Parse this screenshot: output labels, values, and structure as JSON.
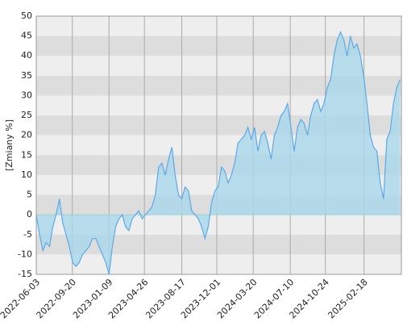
{
  "chart_data": {
    "type": "area",
    "y_label": "[Zmiany %]",
    "x": [
      "2022-06-03",
      "2022-06-13",
      "2022-06-23",
      "2022-07-03",
      "2022-07-13",
      "2022-07-23",
      "2022-08-02",
      "2022-08-12",
      "2022-08-22",
      "2022-09-01",
      "2022-09-11",
      "2022-09-21",
      "2022-10-01",
      "2022-10-11",
      "2022-10-21",
      "2022-10-31",
      "2022-11-10",
      "2022-11-20",
      "2022-11-30",
      "2022-12-10",
      "2022-12-20",
      "2022-12-30",
      "2023-01-09",
      "2023-01-19",
      "2023-01-29",
      "2023-02-08",
      "2023-02-18",
      "2023-02-28",
      "2023-03-10",
      "2023-03-20",
      "2023-03-30",
      "2023-04-09",
      "2023-04-19",
      "2023-04-29",
      "2023-05-09",
      "2023-05-19",
      "2023-05-29",
      "2023-06-08",
      "2023-06-18",
      "2023-06-28",
      "2023-07-08",
      "2023-07-18",
      "2023-07-28",
      "2023-08-07",
      "2023-08-17",
      "2023-08-27",
      "2023-09-06",
      "2023-09-16",
      "2023-09-26",
      "2023-10-06",
      "2023-10-16",
      "2023-10-26",
      "2023-11-05",
      "2023-11-15",
      "2023-11-25",
      "2023-12-05",
      "2023-12-15",
      "2023-12-25",
      "2024-01-04",
      "2024-01-14",
      "2024-01-24",
      "2024-02-03",
      "2024-02-13",
      "2024-02-23",
      "2024-03-04",
      "2024-03-14",
      "2024-03-24",
      "2024-04-03",
      "2024-04-13",
      "2024-04-23",
      "2024-05-03",
      "2024-05-13",
      "2024-05-23",
      "2024-06-02",
      "2024-06-12",
      "2024-06-22",
      "2024-07-02",
      "2024-07-12",
      "2024-07-22",
      "2024-08-01",
      "2024-08-11",
      "2024-08-21",
      "2024-08-31",
      "2024-09-10",
      "2024-09-20",
      "2024-09-30",
      "2024-10-10",
      "2024-10-20",
      "2024-10-30",
      "2024-11-09",
      "2024-11-19",
      "2024-11-29",
      "2024-12-09",
      "2024-12-19",
      "2024-12-29",
      "2025-01-08",
      "2025-01-18",
      "2025-01-28",
      "2025-02-07",
      "2025-02-17",
      "2025-02-27",
      "2025-03-09",
      "2025-03-19",
      "2025-03-29",
      "2025-04-08",
      "2025-04-18",
      "2025-04-28",
      "2025-05-08",
      "2025-05-18",
      "2025-05-28",
      "2025-06-07"
    ],
    "values": [
      0,
      -5,
      -9,
      -7,
      -8,
      -3,
      0,
      4,
      -2,
      -5,
      -8,
      -12,
      -13,
      -12,
      -10,
      -9,
      -8,
      -6,
      -6,
      -8,
      -10,
      -12,
      -15,
      -8,
      -3,
      -1,
      0,
      -3,
      -4,
      -1,
      0,
      1,
      -1,
      0,
      1,
      2,
      5,
      12,
      13,
      10,
      14,
      17,
      10,
      5,
      4,
      7,
      6,
      1,
      0,
      -1,
      -3,
      -6,
      -3,
      3,
      6,
      7,
      12,
      11,
      8,
      10,
      13,
      18,
      19,
      20,
      22,
      19,
      22,
      16,
      20,
      21,
      18,
      14,
      20,
      22,
      25,
      26,
      28,
      22,
      16,
      22,
      24,
      23,
      20,
      25,
      28,
      29,
      26,
      28,
      32,
      34,
      40,
      44,
      46,
      44,
      40,
      45,
      42,
      43,
      40,
      35,
      28,
      20,
      17,
      16,
      8,
      4,
      19,
      21,
      28,
      32,
      34
    ],
    "color": "#5aa9e6",
    "area_color": "#a9d8ec",
    "band_colors": [
      "#eeeeee",
      "#dddddd"
    ],
    "xlim": [
      "2022-06-03",
      "2025-06-11"
    ],
    "xticks": [
      "2022-06-03",
      "2022-09-20",
      "2023-01-09",
      "2023-04-26",
      "2023-08-17",
      "2023-12-01",
      "2024-03-20",
      "2024-07-10",
      "2024-10-24",
      "2025-02-18"
    ],
    "ylim": [
      -15,
      50
    ],
    "yticks": [
      -15,
      -10,
      -5,
      0,
      5,
      10,
      15,
      20,
      25,
      30,
      35,
      40,
      45,
      50
    ],
    "grid": true
  }
}
